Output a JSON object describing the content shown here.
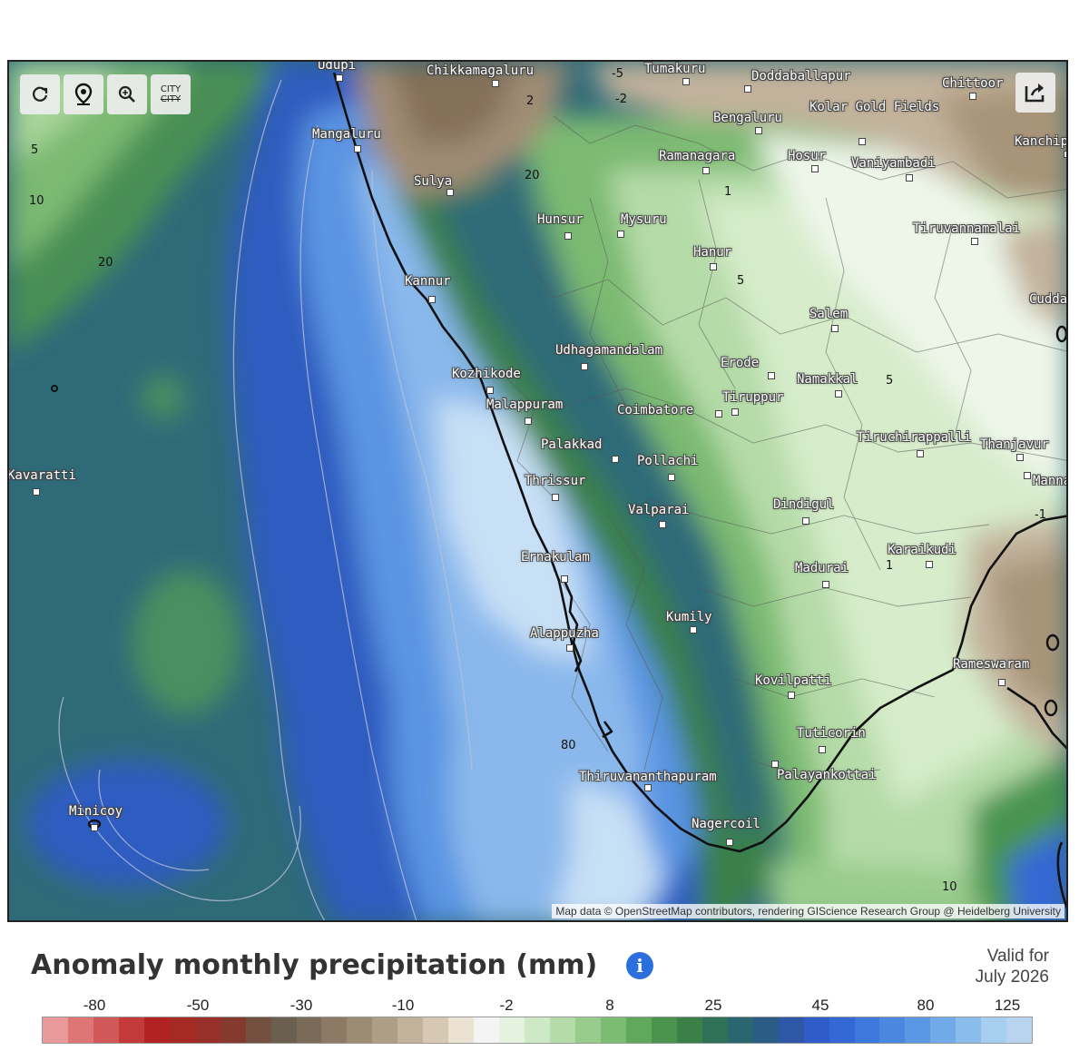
{
  "toolbar": {
    "city_top": "CITY",
    "city_bottom": "CITY"
  },
  "cities": [
    {
      "name": "Udupi"
    },
    {
      "name": "Chikkamagaluru"
    },
    {
      "name": "Tumakuru"
    },
    {
      "name": "Doddaballapur"
    },
    {
      "name": "Chittoor"
    },
    {
      "name": "Bengaluru"
    },
    {
      "name": "Kolar Gold Fields"
    },
    {
      "name": "Mangaluru"
    },
    {
      "name": "Kanchip"
    },
    {
      "name": "Ramanagara"
    },
    {
      "name": "Hosur"
    },
    {
      "name": "Vaniyambadi"
    },
    {
      "name": "Sulya"
    },
    {
      "name": "Hunsur"
    },
    {
      "name": "Mysuru"
    },
    {
      "name": "Tiruvannamalai"
    },
    {
      "name": "Hanur"
    },
    {
      "name": "Kannur"
    },
    {
      "name": "Cudda"
    },
    {
      "name": "Salem"
    },
    {
      "name": "Udhagamandalam"
    },
    {
      "name": "Erode"
    },
    {
      "name": "Kozhikode"
    },
    {
      "name": "Namakkal"
    },
    {
      "name": "Tiruppur"
    },
    {
      "name": "Malappuram"
    },
    {
      "name": "Coimbatore"
    },
    {
      "name": "Tiruchirappalli"
    },
    {
      "name": "Thanjavur"
    },
    {
      "name": "Palakkad"
    },
    {
      "name": "Pollachi"
    },
    {
      "name": "Kavaratti"
    },
    {
      "name": "Thrissur"
    },
    {
      "name": "Manna"
    },
    {
      "name": "Valparai"
    },
    {
      "name": "Dindigul"
    },
    {
      "name": "Ernakulam"
    },
    {
      "name": "Karaikudi"
    },
    {
      "name": "Madurai"
    },
    {
      "name": "Kumily"
    },
    {
      "name": "Alappuzha"
    },
    {
      "name": "Rameswaram"
    },
    {
      "name": "Kovilpatti"
    },
    {
      "name": "Tuticorin"
    },
    {
      "name": "Palayankottai"
    },
    {
      "name": "Thiruvananthapuram"
    },
    {
      "name": "Minicoy"
    },
    {
      "name": "Nagercoil"
    }
  ],
  "contour_labels": [
    "-5",
    "-2",
    "2",
    "5",
    "10",
    "20",
    "20",
    "1",
    "5",
    "5",
    "80",
    "1",
    "-1",
    "10"
  ],
  "attribution": "Map data © OpenStreetMap contributors, rendering GIScience Research Group @ Heidelberg University",
  "legend": {
    "title": "Anomaly monthly precipitation (mm)",
    "valid_line1": "Valid for",
    "valid_line2": "July 2026",
    "tick_labels": [
      "-80",
      "-50",
      "-30",
      "-10",
      "-2",
      "8",
      "25",
      "45",
      "80",
      "125"
    ],
    "colors": [
      "#e89a9a",
      "#de7676",
      "#d15858",
      "#c23a3a",
      "#b22222",
      "#a52a24",
      "#963028",
      "#853a2e",
      "#745040",
      "#6b6050",
      "#7a6a58",
      "#8c7a64",
      "#9d8c74",
      "#ae9e86",
      "#c2b29c",
      "#d6c8b2",
      "#ebe2d2",
      "#f4f4f4",
      "#e6f2e0",
      "#cfe8c6",
      "#b5dba8",
      "#98cc8c",
      "#7cbc72",
      "#5fa85c",
      "#4a9450",
      "#3a8048",
      "#2f7058",
      "#2a6670",
      "#2a5c86",
      "#2e58a6",
      "#2f5cc8",
      "#3468d6",
      "#3d78dc",
      "#4a88e0",
      "#5a98e4",
      "#70aae8",
      "#8abcec",
      "#a6ceef",
      "#b8d4ee"
    ]
  }
}
